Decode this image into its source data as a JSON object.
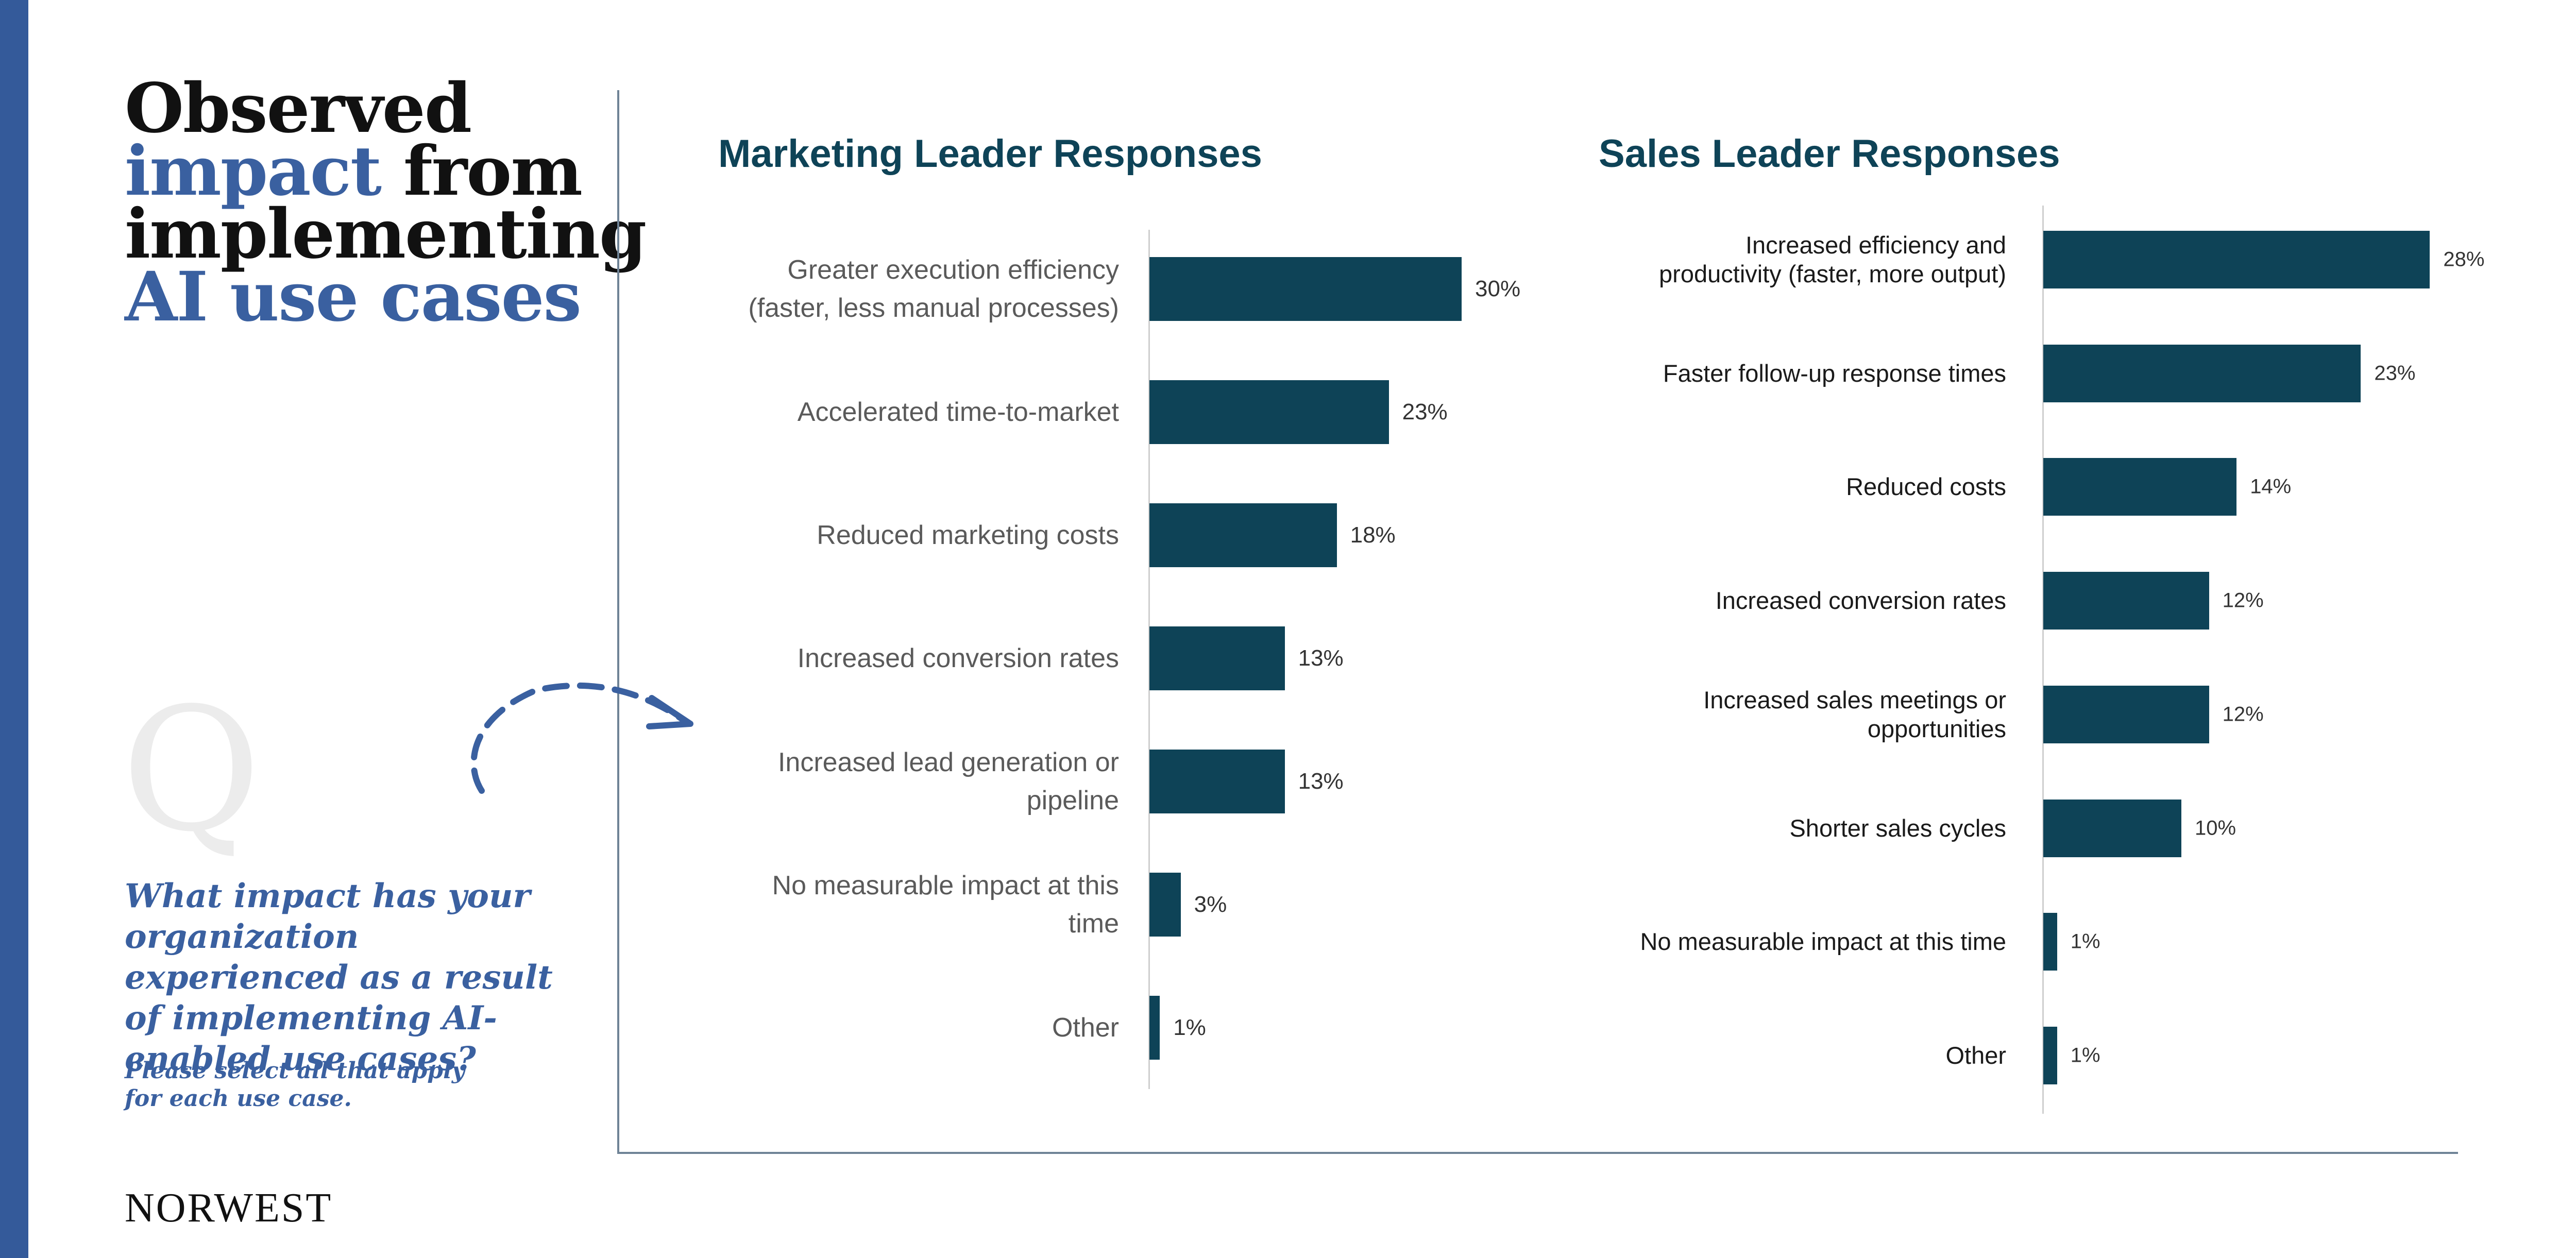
{
  "title": [
    [
      {
        "text": "Observed",
        "accent": false
      }
    ],
    [
      {
        "text": "impact",
        "accent": true
      },
      {
        "text": "from",
        "accent": false
      }
    ],
    [
      {
        "text": "implementing",
        "accent": false
      }
    ],
    [
      {
        "text": "AI use cases",
        "accent": true
      }
    ]
  ],
  "question": {
    "mark": "Q",
    "text": "What impact has your organization experienced as a result of implementing AI-enabled use cases?",
    "note": "Please select all that apply for each use case."
  },
  "footer": {
    "brand": "NORWEST"
  },
  "chart_data": [
    {
      "type": "bar",
      "orientation": "horizontal",
      "title": "Marketing Leader Responses",
      "color": "#0e4357",
      "categories": [
        "Greater execution efficiency\n(faster, less manual processes)",
        "Accelerated time-to-market",
        "Reduced marketing costs",
        "Increased conversion rates",
        "Increased lead generation or\npipeline",
        "No measurable impact at this\ntime",
        "Other"
      ],
      "values": [
        30,
        23,
        18,
        13,
        13,
        3,
        1
      ],
      "value_labels": [
        "30%",
        "23%",
        "18%",
        "13%",
        "13%",
        "3%",
        "1%"
      ]
    },
    {
      "type": "bar",
      "orientation": "horizontal",
      "title": "Sales Leader Responses",
      "color": "#0e4357",
      "categories": [
        "Increased efficiency and\nproductivity (faster, more output)",
        "Faster follow-up response times",
        "Reduced costs",
        "Increased conversion rates",
        "Increased sales meetings or\nopportunities",
        "Shorter sales cycles",
        "No measurable impact at this time",
        "Other"
      ],
      "values": [
        28,
        23,
        14,
        12,
        12,
        10,
        1,
        1
      ],
      "value_labels": [
        "28%",
        "23%",
        "14%",
        "12%",
        "12%",
        "10%",
        "1%",
        "1%"
      ]
    }
  ]
}
